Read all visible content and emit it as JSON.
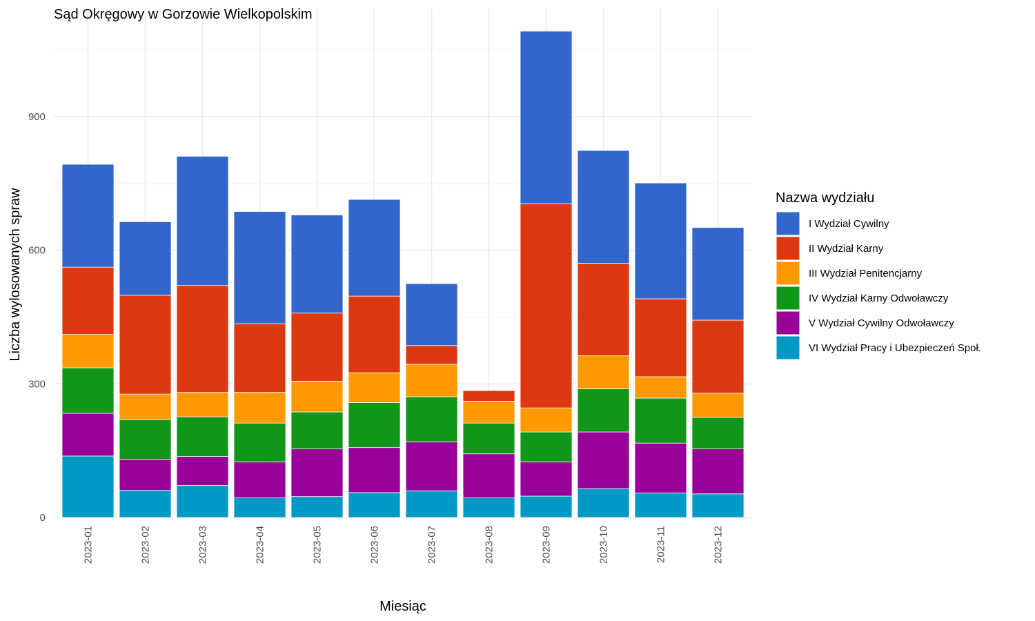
{
  "chart_data": {
    "type": "bar",
    "stacked": true,
    "title": "Sąd Okręgowy w Gorzowie Wielkopolskim",
    "xlabel": "Miesiąc",
    "ylabel": "Liczba wylosowanych spraw",
    "ylim": [
      0,
      1100
    ],
    "yticks": [
      0,
      300,
      600,
      900
    ],
    "grid": true,
    "legend": {
      "title": "Nazwa wydziału",
      "position": "right"
    },
    "categories": [
      "2023-01",
      "2023-02",
      "2023-03",
      "2023-04",
      "2023-05",
      "2023-06",
      "2023-07",
      "2023-08",
      "2023-09",
      "2023-10",
      "2023-11",
      "2023-12"
    ],
    "series": [
      {
        "name": "VI Wydział Pracy i Ubezpieczeń Społ.",
        "color": "#0099C6",
        "values": [
          138,
          61,
          72,
          44,
          47,
          56,
          60,
          44,
          48,
          65,
          55,
          53
        ]
      },
      {
        "name": "V Wydział Cywilny Odwoławczy",
        "color": "#990099",
        "values": [
          96,
          70,
          65,
          81,
          107,
          101,
          110,
          99,
          77,
          127,
          112,
          101
        ]
      },
      {
        "name": "IV Wydział Karny Odwoławczy",
        "color": "#109618",
        "values": [
          102,
          89,
          89,
          87,
          83,
          101,
          101,
          69,
          67,
          97,
          101,
          71
        ]
      },
      {
        "name": "III Wydział Penitencjarny",
        "color": "#FF9900",
        "values": [
          75,
          57,
          55,
          69,
          69,
          67,
          73,
          49,
          54,
          74,
          48,
          54
        ]
      },
      {
        "name": "II Wydział Karny",
        "color": "#DC3912",
        "values": [
          151,
          222,
          240,
          154,
          153,
          172,
          42,
          24,
          458,
          208,
          175,
          164
        ]
      },
      {
        "name": "I Wydział Cywilny",
        "color": "#3366CC",
        "values": [
          231,
          165,
          290,
          252,
          220,
          217,
          139,
          0,
          388,
          253,
          260,
          208
        ]
      }
    ]
  }
}
